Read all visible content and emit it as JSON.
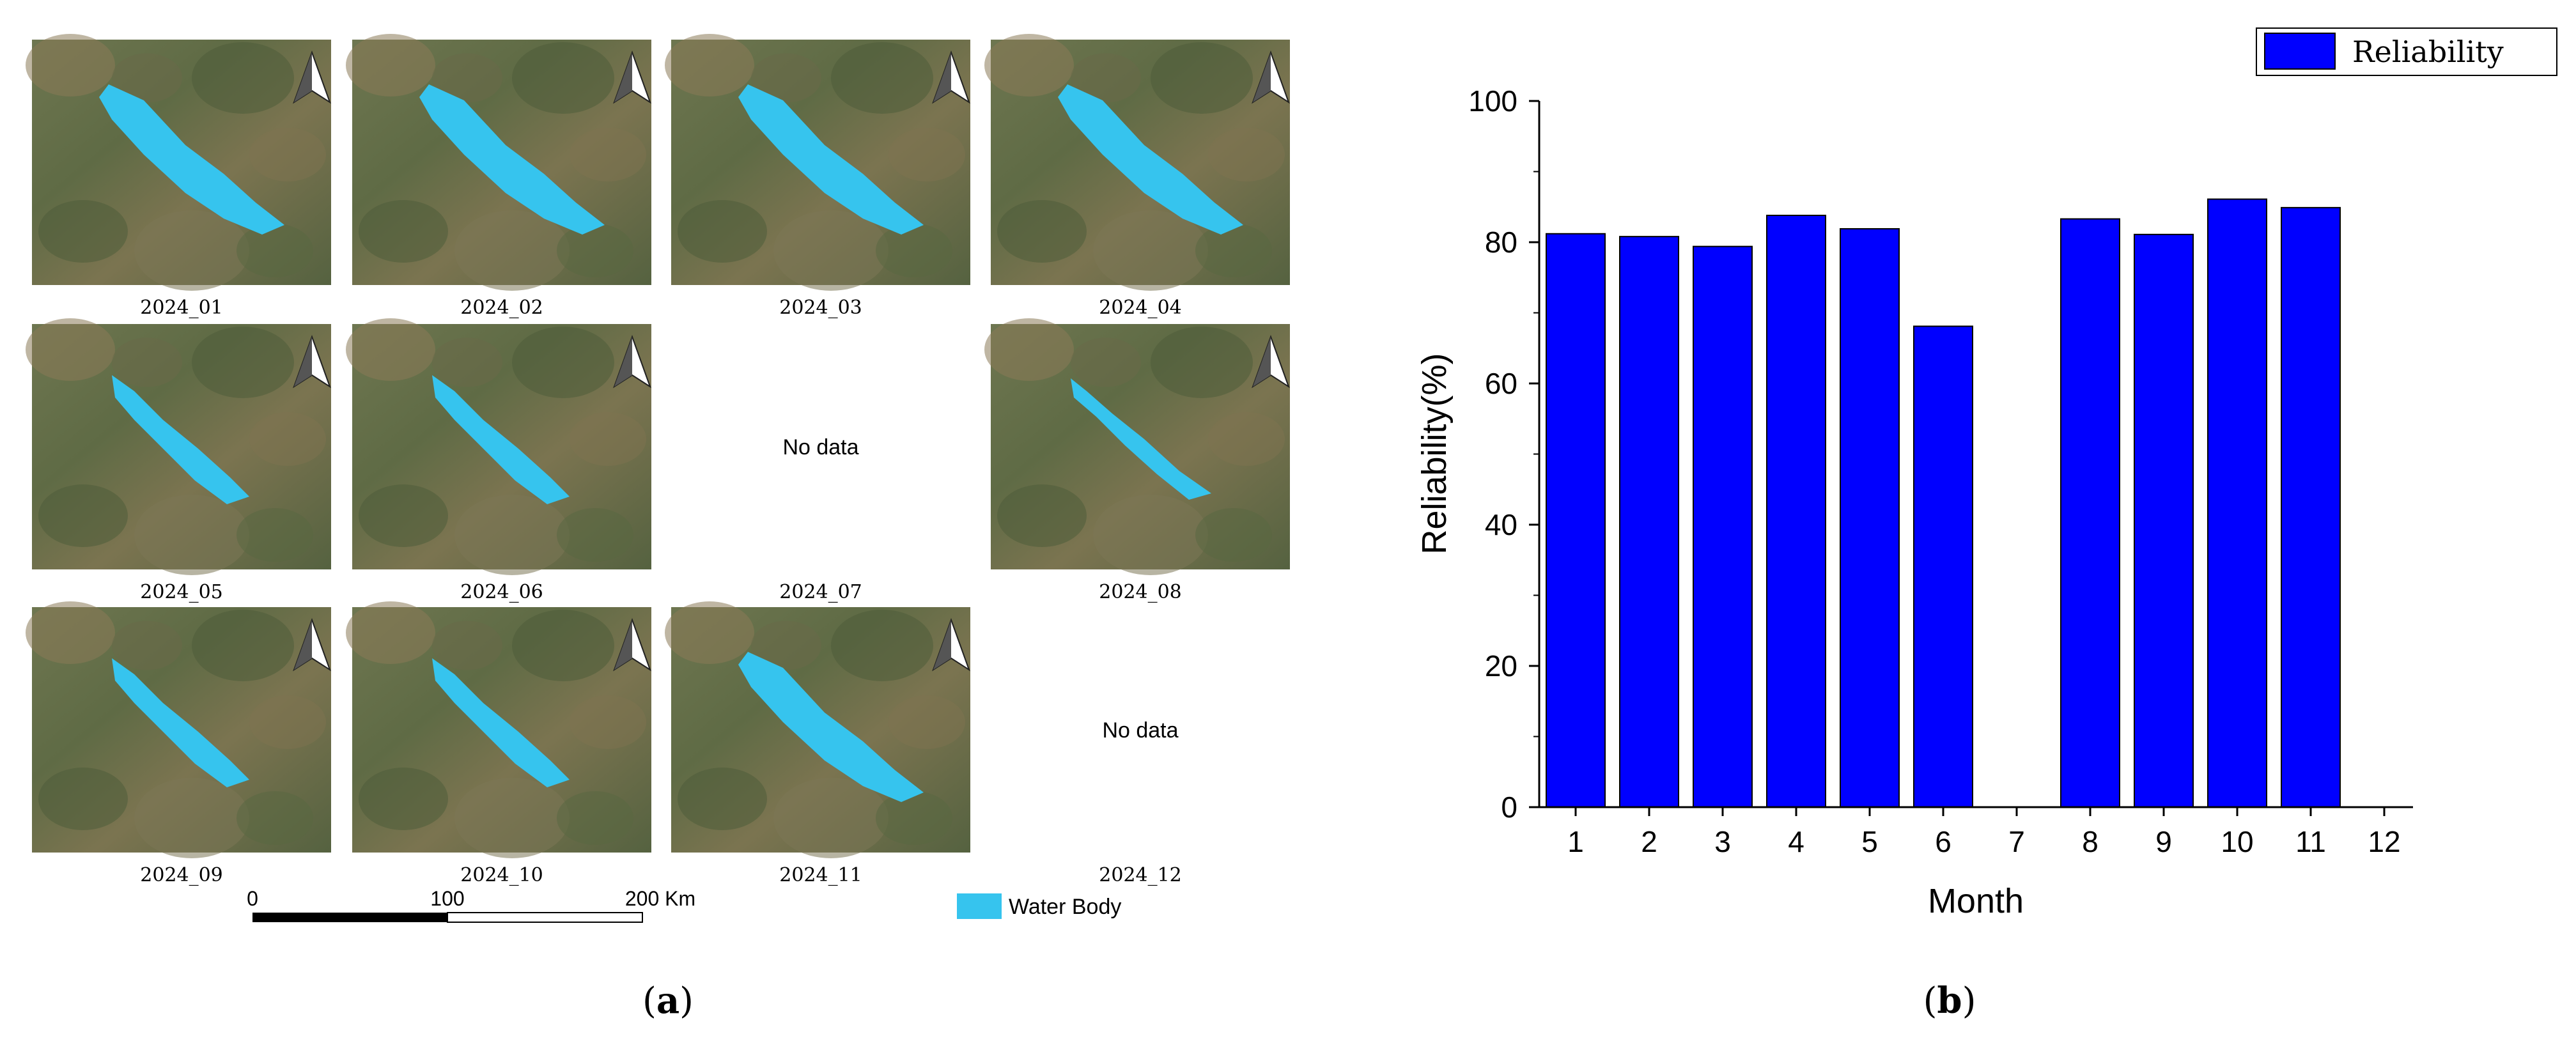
{
  "panel_a": {
    "tiles": [
      {
        "label": "2024_01",
        "status": "map",
        "shape": "full"
      },
      {
        "label": "2024_02",
        "status": "map",
        "shape": "full"
      },
      {
        "label": "2024_03",
        "status": "map",
        "shape": "full"
      },
      {
        "label": "2024_04",
        "status": "map",
        "shape": "full"
      },
      {
        "label": "2024_05",
        "status": "map",
        "shape": "medium"
      },
      {
        "label": "2024_06",
        "status": "map",
        "shape": "medium"
      },
      {
        "label": "2024_07",
        "status": "nodata",
        "shape": "none"
      },
      {
        "label": "2024_08",
        "status": "map",
        "shape": "thin"
      },
      {
        "label": "2024_09",
        "status": "map",
        "shape": "medium"
      },
      {
        "label": "2024_10",
        "status": "map",
        "shape": "medium"
      },
      {
        "label": "2024_11",
        "status": "map",
        "shape": "full"
      },
      {
        "label": "2024_12",
        "status": "nodata",
        "shape": "none"
      }
    ],
    "no_data_text": "No data",
    "scalebar": {
      "tick_labels": [
        "0",
        "100",
        "200 Km"
      ]
    },
    "legend": {
      "label": "Water Body",
      "color": "#36c4ee"
    },
    "caption_letter": "a",
    "caption_paren_open": "(",
    "caption_paren_close": ")"
  },
  "chart_data": {
    "type": "bar",
    "categories": [
      "1",
      "2",
      "3",
      "4",
      "5",
      "6",
      "7",
      "8",
      "9",
      "10",
      "11",
      "12"
    ],
    "series": [
      {
        "name": "Reliability",
        "values": [
          81.2,
          80.8,
          79.4,
          83.8,
          81.9,
          68.1,
          null,
          83.3,
          81.1,
          86.1,
          84.9,
          null
        ],
        "color": "#0000ff"
      }
    ],
    "xlabel": "Month",
    "ylabel": "Reliability(%)",
    "ylim": [
      0,
      100
    ],
    "yticks": [
      0,
      20,
      40,
      60,
      80,
      100
    ],
    "grid": false,
    "legend_position": "top-right"
  },
  "panel_b": {
    "caption_letter": "b",
    "caption_paren_open": "(",
    "caption_paren_close": ")"
  }
}
